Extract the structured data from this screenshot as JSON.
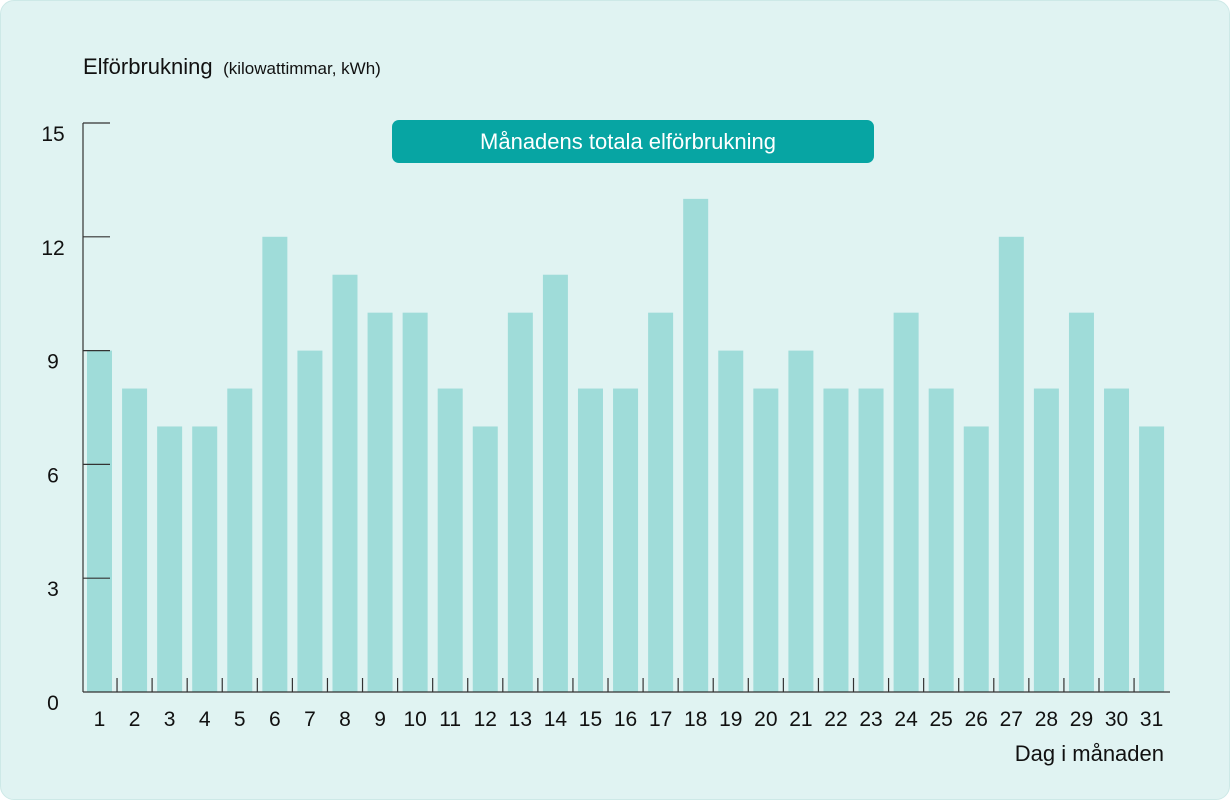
{
  "chart_data": {
    "type": "bar",
    "title": "Månadens totala elförbrukning",
    "ylabel": "Elförbrukning",
    "ylabel_unit": "(kilowattimmar, kWh)",
    "xlabel": "Dag i månaden",
    "ylim": [
      0,
      15
    ],
    "yticks": [
      0,
      3,
      6,
      9,
      12,
      15
    ],
    "grid": false,
    "bar_color": "#9fdcd9",
    "banner_color": "#07a5a3",
    "categories": [
      "1",
      "2",
      "3",
      "4",
      "5",
      "6",
      "7",
      "8",
      "9",
      "10",
      "11",
      "12",
      "13",
      "14",
      "15",
      "16",
      "17",
      "18",
      "19",
      "20",
      "21",
      "22",
      "23",
      "24",
      "25",
      "26",
      "27",
      "28",
      "29",
      "30",
      "31"
    ],
    "values": [
      9,
      8,
      7,
      7,
      8,
      12,
      9,
      11,
      10,
      10,
      8,
      7,
      10,
      11,
      8,
      8,
      10,
      13,
      9,
      8,
      9,
      8,
      8,
      10,
      8,
      7,
      12,
      8,
      10,
      8,
      7
    ]
  }
}
